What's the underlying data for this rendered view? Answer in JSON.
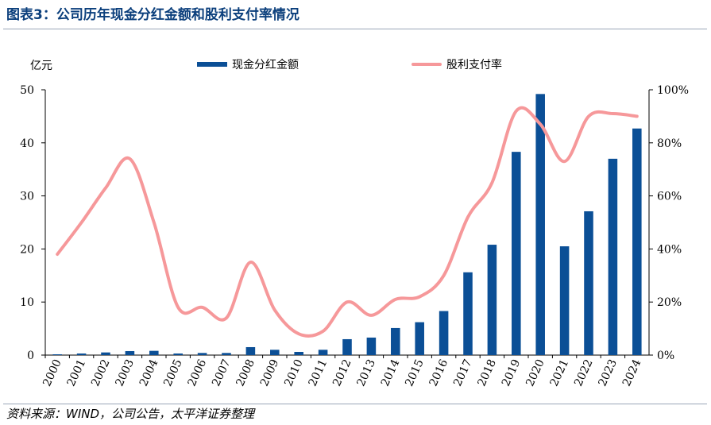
{
  "header": {
    "title": "图表3：公司历年现金分红金额和股利支付率情况"
  },
  "footer": {
    "source": "资料来源：WIND，公司公告，太平洋证券整理"
  },
  "chart_data": {
    "type": "bar",
    "title": "图表3：公司历年现金分红金额和股利支付率情况",
    "y_unit_label": "亿元",
    "categories": [
      "2000",
      "2001",
      "2002",
      "2003",
      "2004",
      "2005",
      "2006",
      "2007",
      "2008",
      "2009",
      "2010",
      "2011",
      "2012",
      "2013",
      "2014",
      "2015",
      "2016",
      "2017",
      "2018",
      "2019",
      "2020",
      "2021",
      "2022",
      "2023",
      "2024"
    ],
    "series": [
      {
        "name": "现金分红金额",
        "type": "bar",
        "axis": "left",
        "color": "#0b4f96",
        "values": [
          0.15,
          0.3,
          0.5,
          0.75,
          0.8,
          0.3,
          0.4,
          0.4,
          1.5,
          1.0,
          0.6,
          1.0,
          3.0,
          3.3,
          5.1,
          6.2,
          8.3,
          15.6,
          20.8,
          38.3,
          49.2,
          20.5,
          27.1,
          37.0,
          42.7
        ]
      },
      {
        "name": "股利支付率",
        "type": "line",
        "axis": "right",
        "color": "#f6989a",
        "values": [
          38,
          50,
          63,
          74,
          50,
          18,
          18,
          14,
          35,
          17,
          8,
          9,
          20,
          15,
          21,
          22,
          30,
          52,
          65,
          92,
          87,
          73,
          90,
          91,
          90
        ]
      }
    ],
    "ylim_left": [
      0,
      50
    ],
    "yticks_left": [
      "0",
      "10",
      "20",
      "30",
      "40",
      "50"
    ],
    "ylim_right": [
      0,
      100
    ],
    "yticks_right": [
      "0%",
      "20%",
      "40%",
      "60%",
      "80%",
      "100%"
    ],
    "grid": false,
    "legend_position": "top"
  }
}
